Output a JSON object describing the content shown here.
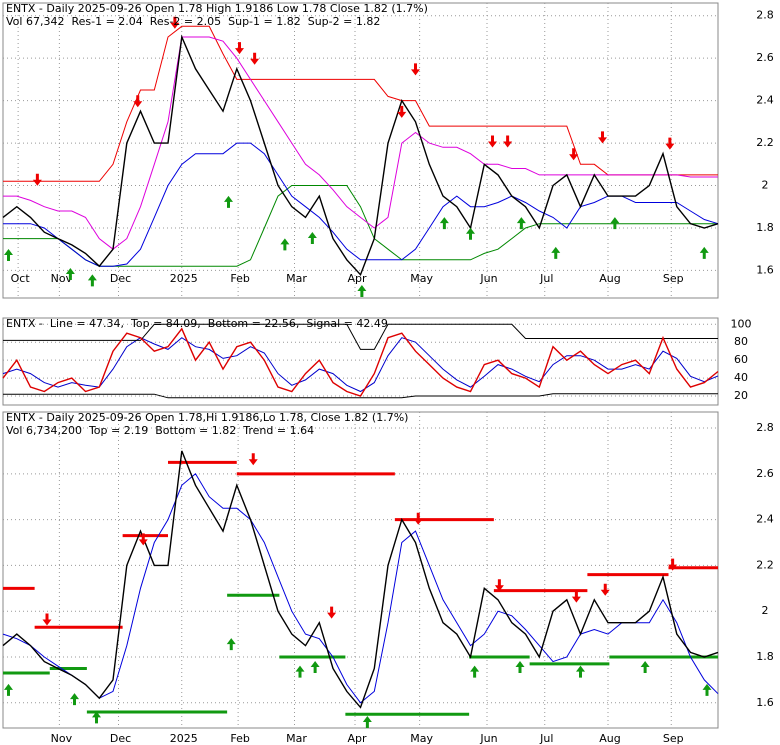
{
  "chart_data": [
    {
      "type": "line",
      "title": "ENTX - Daily 2025-09-26 Open 1.78  High 1.9186  Low 1.78  Close 1.82 (1.7%)",
      "volume": "Vol 67,342",
      "xlim": [
        0,
        52
      ],
      "xticks": [
        {
          "value": 1.1,
          "label": "Oct"
        },
        {
          "value": 4.1,
          "label": "Nov"
        },
        {
          "value": 8.4,
          "label": "Dec"
        },
        {
          "value": 13,
          "label": "2025"
        },
        {
          "value": 17.1,
          "label": "Feb"
        },
        {
          "value": 21.2,
          "label": "Mar"
        },
        {
          "value": 25.6,
          "label": "Apr"
        },
        {
          "value": 30.3,
          "label": "May"
        },
        {
          "value": 35.2,
          "label": "Jun"
        },
        {
          "value": 39.4,
          "label": "Jul"
        },
        {
          "value": 44,
          "label": "Aug"
        },
        {
          "value": 48.6,
          "label": "Sep"
        }
      ],
      "ylim": [
        1.47,
        2.86
      ],
      "yticks": [
        1.6,
        1.8,
        2.0,
        2.2,
        2.4,
        2.6,
        2.8
      ],
      "grid": true,
      "series": [
        {
          "color": "#000000",
          "values": [
            1.85,
            1.9,
            1.85,
            1.78,
            1.75,
            1.72,
            1.68,
            1.62,
            1.7,
            2.2,
            2.35,
            2.2,
            2.2,
            2.7,
            2.55,
            2.45,
            2.35,
            2.55,
            2.4,
            2.2,
            2.0,
            1.9,
            1.85,
            1.95,
            1.75,
            1.65,
            1.58,
            1.75,
            2.2,
            2.4,
            2.3,
            2.1,
            1.95,
            1.9,
            1.8,
            2.1,
            2.05,
            1.95,
            1.9,
            1.8,
            2.0,
            2.05,
            1.9,
            2.05,
            1.95,
            1.95,
            1.95,
            2.0,
            2.15,
            1.9,
            1.82,
            1.8,
            1.82
          ]
        },
        {
          "label": "Res-1 = 2.04",
          "color": "#dd00dd",
          "values": [
            1.95,
            1.95,
            1.93,
            1.9,
            1.88,
            1.88,
            1.85,
            1.75,
            1.7,
            1.75,
            1.9,
            2.1,
            2.3,
            2.7,
            2.7,
            2.7,
            2.68,
            2.6,
            2.5,
            2.4,
            2.3,
            2.2,
            2.1,
            2.05,
            1.98,
            1.9,
            1.85,
            1.8,
            1.85,
            2.2,
            2.25,
            2.2,
            2.18,
            2.18,
            2.15,
            2.1,
            2.1,
            2.08,
            2.08,
            2.05,
            2.05,
            2.05,
            2.05,
            2.05,
            2.05,
            2.05,
            2.05,
            2.05,
            2.05,
            2.05,
            2.04,
            2.04,
            2.04
          ]
        },
        {
          "label": "Res-2 = 2.05",
          "color": "#ee0000",
          "values": [
            2.02,
            2.02,
            2.02,
            2.02,
            2.02,
            2.02,
            2.02,
            2.02,
            2.1,
            2.3,
            2.45,
            2.45,
            2.7,
            2.75,
            2.75,
            2.75,
            2.62,
            2.5,
            2.5,
            2.5,
            2.5,
            2.5,
            2.5,
            2.5,
            2.5,
            2.5,
            2.5,
            2.5,
            2.42,
            2.4,
            2.4,
            2.28,
            2.28,
            2.28,
            2.28,
            2.28,
            2.28,
            2.28,
            2.28,
            2.28,
            2.28,
            2.28,
            2.1,
            2.1,
            2.05,
            2.05,
            2.05,
            2.05,
            2.05,
            2.05,
            2.05,
            2.05,
            2.05
          ]
        },
        {
          "label": "Sup-1 = 1.82",
          "color": "#0000dd",
          "values": [
            1.82,
            1.82,
            1.82,
            1.8,
            1.75,
            1.7,
            1.65,
            1.62,
            1.62,
            1.63,
            1.7,
            1.85,
            2.0,
            2.1,
            2.15,
            2.15,
            2.15,
            2.2,
            2.2,
            2.15,
            2.05,
            1.95,
            1.9,
            1.85,
            1.78,
            1.7,
            1.65,
            1.65,
            1.65,
            1.65,
            1.7,
            1.8,
            1.9,
            1.95,
            1.9,
            1.9,
            1.92,
            1.95,
            1.92,
            1.88,
            1.85,
            1.8,
            1.9,
            1.92,
            1.95,
            1.95,
            1.92,
            1.92,
            1.92,
            1.92,
            1.88,
            1.84,
            1.82
          ]
        },
        {
          "label": "Sup-2 = 1.82",
          "color": "#008800",
          "values": [
            1.75,
            1.75,
            1.75,
            1.75,
            1.75,
            1.7,
            1.65,
            1.62,
            1.62,
            1.62,
            1.62,
            1.62,
            1.62,
            1.62,
            1.62,
            1.62,
            1.62,
            1.62,
            1.65,
            1.8,
            1.95,
            2.0,
            2.0,
            2.0,
            2.0,
            2.0,
            1.9,
            1.75,
            1.7,
            1.65,
            1.65,
            1.65,
            1.65,
            1.65,
            1.65,
            1.68,
            1.7,
            1.75,
            1.8,
            1.82,
            1.82,
            1.82,
            1.82,
            1.82,
            1.82,
            1.82,
            1.82,
            1.82,
            1.82,
            1.82,
            1.82,
            1.82,
            1.82
          ]
        }
      ],
      "down_color": "#ee0000",
      "up_color": "#119911",
      "down_arrows": [
        {
          "x": 2.5,
          "y": 1.98
        },
        {
          "x": 9.8,
          "y": 2.35
        },
        {
          "x": 12.5,
          "y": 2.72
        },
        {
          "x": 17.2,
          "y": 2.6
        },
        {
          "x": 18.3,
          "y": 2.55
        },
        {
          "x": 29,
          "y": 2.3
        },
        {
          "x": 30,
          "y": 2.5
        },
        {
          "x": 35.6,
          "y": 2.16
        },
        {
          "x": 36.7,
          "y": 2.16
        },
        {
          "x": 41.5,
          "y": 2.1
        },
        {
          "x": 43.6,
          "y": 2.18
        },
        {
          "x": 48.5,
          "y": 2.15
        }
      ],
      "up_arrows": [
        {
          "x": 0.4,
          "y": 1.72
        },
        {
          "x": 4.9,
          "y": 1.63
        },
        {
          "x": 6.5,
          "y": 1.6
        },
        {
          "x": 16.4,
          "y": 1.97
        },
        {
          "x": 20.5,
          "y": 1.77
        },
        {
          "x": 22.5,
          "y": 1.8
        },
        {
          "x": 26.1,
          "y": 1.55
        },
        {
          "x": 32.1,
          "y": 1.87
        },
        {
          "x": 34,
          "y": 1.82
        },
        {
          "x": 37.7,
          "y": 1.87
        },
        {
          "x": 40.2,
          "y": 1.73
        },
        {
          "x": 44.5,
          "y": 1.87
        },
        {
          "x": 51,
          "y": 1.73
        }
      ]
    },
    {
      "type": "line",
      "title": "ENTX -",
      "xlim": [
        0,
        52
      ],
      "ylim": [
        10,
        107
      ],
      "yticks": [
        20,
        40,
        60,
        80,
        100
      ],
      "grid": true,
      "series": [
        {
          "label": "Line = 47.34,",
          "color": "#dd0000",
          "values": [
            40,
            60,
            30,
            25,
            35,
            40,
            25,
            30,
            70,
            90,
            85,
            70,
            75,
            95,
            60,
            80,
            50,
            75,
            80,
            60,
            30,
            25,
            45,
            60,
            35,
            25,
            20,
            45,
            85,
            90,
            70,
            55,
            40,
            30,
            25,
            55,
            60,
            45,
            40,
            30,
            75,
            60,
            70,
            55,
            45,
            55,
            60,
            45,
            85,
            50,
            30,
            35,
            47.34
          ]
        },
        {
          "label": "Top = 84.09,",
          "color": "#000000",
          "values": [
            82,
            82,
            82,
            82,
            82,
            82,
            82,
            82,
            82,
            82,
            82,
            100,
            100,
            100,
            100,
            100,
            100,
            100,
            100,
            100,
            100,
            100,
            100,
            100,
            100,
            100,
            72,
            72,
            100,
            100,
            100,
            100,
            100,
            100,
            100,
            100,
            100,
            100,
            84.09,
            84.09,
            84.09,
            84.09,
            84.09,
            84.09,
            84.09,
            84.09,
            84.09,
            84.09,
            84.09,
            84.09,
            84.09,
            84.09,
            84.09
          ]
        },
        {
          "label": "Bottom = 22.56,",
          "color": "#000000",
          "values": [
            22,
            22,
            22,
            22,
            22,
            22,
            22,
            22,
            22,
            22,
            22,
            22,
            18,
            18,
            18,
            18,
            18,
            18,
            18,
            18,
            18,
            18,
            18,
            18,
            18,
            18,
            18,
            18,
            18,
            18,
            20,
            20,
            20,
            20,
            20,
            20,
            20,
            20,
            20,
            20,
            22.56,
            22.56,
            22.56,
            22.56,
            22.56,
            22.56,
            22.56,
            22.56,
            22.56,
            22.56,
            22.56,
            22.56,
            22.56
          ]
        },
        {
          "label": "Signal = 42.49",
          "color": "#0000cc",
          "values": [
            45,
            50,
            45,
            35,
            30,
            35,
            32,
            30,
            50,
            75,
            85,
            78,
            72,
            85,
            75,
            72,
            62,
            65,
            75,
            68,
            45,
            32,
            38,
            50,
            45,
            32,
            25,
            35,
            65,
            85,
            80,
            65,
            50,
            38,
            30,
            42,
            55,
            50,
            42,
            36,
            55,
            65,
            65,
            60,
            50,
            50,
            55,
            50,
            70,
            62,
            42,
            36,
            42.49
          ]
        }
      ]
    },
    {
      "type": "line",
      "title": "ENTX - Daily 2025-09-26 Open 1.78,Hi 1.9186,Lo 1.78, Close 1.82 (1.7%)",
      "volume": "Vol 6,734,200",
      "xlim": [
        0,
        52
      ],
      "xticks": [
        {
          "value": 4.1,
          "label": "Nov"
        },
        {
          "value": 8.4,
          "label": "Dec"
        },
        {
          "value": 13,
          "label": "2025"
        },
        {
          "value": 17.1,
          "label": "Feb"
        },
        {
          "value": 21.2,
          "label": "Mar"
        },
        {
          "value": 25.6,
          "label": "Apr"
        },
        {
          "value": 30.3,
          "label": "May"
        },
        {
          "value": 35.2,
          "label": "Jun"
        },
        {
          "value": 39.4,
          "label": "Jul"
        },
        {
          "value": 44,
          "label": "Aug"
        },
        {
          "value": 48.6,
          "label": "Sep"
        }
      ],
      "ylim": [
        1.49,
        2.87
      ],
      "yticks": [
        1.6,
        1.8,
        2.0,
        2.2,
        2.4,
        2.6,
        2.8
      ],
      "grid": true,
      "levels": [
        {
          "label": "Top = 2.19",
          "color": "#ee0000",
          "segments": [
            {
              "start": 0,
              "end": 2.3,
              "value": 2.1
            },
            {
              "start": 2.3,
              "end": 8.7,
              "value": 1.93
            },
            {
              "start": 8.7,
              "end": 12,
              "value": 2.33
            },
            {
              "start": 12,
              "end": 17,
              "value": 2.65
            },
            {
              "start": 17,
              "end": 28.5,
              "value": 2.6
            },
            {
              "start": 28.5,
              "end": 35.7,
              "value": 2.4
            },
            {
              "start": 35.7,
              "end": 42.5,
              "value": 2.09
            },
            {
              "start": 42.5,
              "end": 48.4,
              "value": 2.16
            },
            {
              "start": 48.4,
              "end": 52,
              "value": 2.19
            }
          ]
        },
        {
          "label": "Bottom = 1.82",
          "color": "#119911",
          "segments": [
            {
              "start": 0,
              "end": 3.4,
              "value": 1.73
            },
            {
              "start": 3.4,
              "end": 6.1,
              "value": 1.75
            },
            {
              "start": 6.1,
              "end": 16.3,
              "value": 1.56
            },
            {
              "start": 16.3,
              "end": 20.1,
              "value": 2.07
            },
            {
              "start": 20.1,
              "end": 24.9,
              "value": 1.8
            },
            {
              "start": 24.9,
              "end": 33.9,
              "value": 1.55
            },
            {
              "start": 33.9,
              "end": 38.3,
              "value": 1.8
            },
            {
              "start": 38.3,
              "end": 44.1,
              "value": 1.77
            },
            {
              "start": 44.1,
              "end": 52,
              "value": 1.8
            }
          ]
        }
      ],
      "series": [
        {
          "color": "#000000",
          "values": [
            1.85,
            1.9,
            1.85,
            1.78,
            1.75,
            1.72,
            1.68,
            1.62,
            1.7,
            2.2,
            2.35,
            2.2,
            2.2,
            2.7,
            2.55,
            2.45,
            2.35,
            2.55,
            2.4,
            2.2,
            2.0,
            1.9,
            1.85,
            1.95,
            1.75,
            1.65,
            1.58,
            1.75,
            2.2,
            2.4,
            2.3,
            2.1,
            1.95,
            1.9,
            1.8,
            2.1,
            2.05,
            1.95,
            1.9,
            1.8,
            2.0,
            2.05,
            1.9,
            2.05,
            1.95,
            1.95,
            1.95,
            2.0,
            2.15,
            1.9,
            1.82,
            1.8,
            1.82
          ]
        },
        {
          "label": "Trend = 1.64",
          "color": "#0000dd",
          "values": [
            1.9,
            1.88,
            1.85,
            1.8,
            1.76,
            1.72,
            1.68,
            1.62,
            1.65,
            1.85,
            2.1,
            2.3,
            2.4,
            2.55,
            2.6,
            2.5,
            2.45,
            2.45,
            2.4,
            2.3,
            2.15,
            2.0,
            1.9,
            1.88,
            1.8,
            1.68,
            1.6,
            1.65,
            1.95,
            2.3,
            2.35,
            2.2,
            2.05,
            1.95,
            1.85,
            1.9,
            2.0,
            1.98,
            1.92,
            1.85,
            1.78,
            1.8,
            1.9,
            1.92,
            1.9,
            1.95,
            1.95,
            1.95,
            2.05,
            1.95,
            1.8,
            1.7,
            1.64
          ]
        }
      ],
      "down_color": "#ee0000",
      "up_color": "#119911",
      "down_arrows": [
        {
          "x": 3.2,
          "y": 1.92
        },
        {
          "x": 10.2,
          "y": 2.27
        },
        {
          "x": 18.2,
          "y": 2.62
        },
        {
          "x": 23.9,
          "y": 1.95
        },
        {
          "x": 30.2,
          "y": 2.36
        },
        {
          "x": 36.1,
          "y": 2.07
        },
        {
          "x": 41.7,
          "y": 2.02
        },
        {
          "x": 43.8,
          "y": 2.05
        },
        {
          "x": 48.7,
          "y": 2.16
        }
      ],
      "up_arrows": [
        {
          "x": 0.4,
          "y": 1.7
        },
        {
          "x": 5.2,
          "y": 1.66
        },
        {
          "x": 6.8,
          "y": 1.58
        },
        {
          "x": 16.6,
          "y": 1.9
        },
        {
          "x": 21.6,
          "y": 1.78
        },
        {
          "x": 22.7,
          "y": 1.8
        },
        {
          "x": 26.5,
          "y": 1.56
        },
        {
          "x": 34.3,
          "y": 1.78
        },
        {
          "x": 37.6,
          "y": 1.8
        },
        {
          "x": 42,
          "y": 1.78
        },
        {
          "x": 46.7,
          "y": 1.8
        },
        {
          "x": 51.2,
          "y": 1.7
        }
      ]
    }
  ]
}
